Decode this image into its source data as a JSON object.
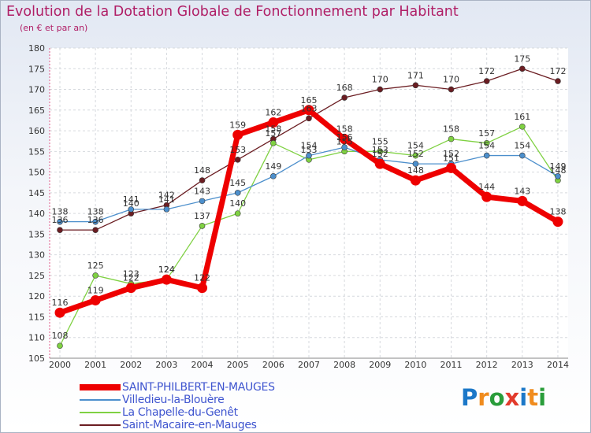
{
  "chart_data": {
    "type": "line",
    "title": "Evolution de la Dotation Globale de Fonctionnement par Habitant",
    "subtitle": "(en € et par an)",
    "x": [
      "2000",
      "2001",
      "2002",
      "2003",
      "2004",
      "2005",
      "2006",
      "2007",
      "2008",
      "2009",
      "2010",
      "2011",
      "2012",
      "2013",
      "2014"
    ],
    "ylim": [
      105,
      180
    ],
    "yticks": [
      105,
      110,
      115,
      120,
      125,
      130,
      135,
      140,
      145,
      150,
      155,
      160,
      165,
      170,
      175,
      180
    ],
    "grid": true,
    "legend_position": "bottom-left",
    "series": [
      {
        "name": "SAINT-PHILBERT-EN-MAUGES",
        "color": "#ee0000",
        "bold": true,
        "values": [
          116,
          119,
          122,
          124,
          122,
          159,
          162,
          165,
          158,
          152,
          148,
          151,
          144,
          143,
          138
        ]
      },
      {
        "name": "Villedieu-la-Blouère",
        "color": "#4c8fcc",
        "values": [
          138,
          138,
          141,
          141,
          143,
          145,
          149,
          154,
          156,
          153,
          152,
          152,
          154,
          154,
          149
        ]
      },
      {
        "name": "La Chapelle-du-Genêt",
        "color": "#7fd142",
        "values": [
          108,
          125,
          123,
          124,
          137,
          140,
          157,
          153,
          155,
          155,
          154,
          158,
          157,
          161,
          148
        ]
      },
      {
        "name": "Saint-Macaire-en-Mauges",
        "color": "#6b1d22",
        "values": [
          136,
          136,
          140,
          142,
          148,
          153,
          158,
          163,
          168,
          170,
          171,
          170,
          172,
          175,
          172
        ]
      }
    ]
  },
  "brand": {
    "letters": [
      {
        "ch": "P",
        "color": "#1c78c8"
      },
      {
        "ch": "r",
        "color": "#f08c1e"
      },
      {
        "ch": "o",
        "color": "#2a9d3a"
      },
      {
        "ch": "x",
        "color": "#e23b2c"
      },
      {
        "ch": "i",
        "color": "#1c78c8"
      },
      {
        "ch": "t",
        "color": "#f08c1e"
      },
      {
        "ch": "i",
        "color": "#2a9d3a"
      }
    ]
  }
}
